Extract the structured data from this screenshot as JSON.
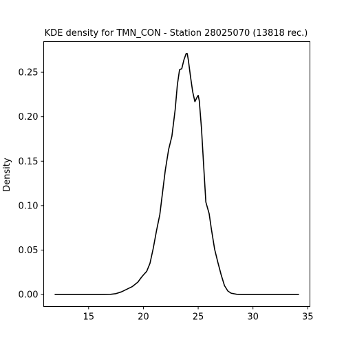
{
  "chart_data": {
    "type": "line",
    "title": "KDE density for TMN_CON - Station 28025070 (13818 rec.)",
    "xlabel": "",
    "ylabel": "Density",
    "xlim": [
      10.9,
      35.2
    ],
    "ylim": [
      -0.0135,
      0.2845
    ],
    "x_ticks": [
      15,
      20,
      25,
      30,
      35
    ],
    "y_ticks": [
      0.0,
      0.05,
      0.1,
      0.15,
      0.2,
      0.25
    ],
    "x_tick_labels": [
      "15",
      "20",
      "25",
      "30",
      "35"
    ],
    "y_tick_labels": [
      "0.00",
      "0.05",
      "0.10",
      "0.15",
      "0.20",
      "0.25"
    ],
    "grid": false,
    "series": [
      {
        "color": "#000000",
        "x": [
          11.9,
          14.0,
          16.0,
          17.0,
          17.5,
          18.0,
          18.5,
          19.0,
          19.5,
          19.8,
          20.0,
          20.3,
          20.6,
          20.9,
          21.2,
          21.5,
          21.8,
          22.0,
          22.3,
          22.6,
          22.9,
          23.1,
          23.3,
          23.5,
          23.7,
          23.9,
          24.0,
          24.1,
          24.3,
          24.5,
          24.7,
          24.9,
          25.0,
          25.1,
          25.3,
          25.5,
          25.7,
          26.0,
          26.2,
          26.5,
          26.8,
          27.1,
          27.4,
          27.7,
          28.0,
          28.5,
          29.0,
          30.0,
          32.0,
          34.2
        ],
        "y": [
          0.0,
          0.0,
          0.0,
          0.0002,
          0.001,
          0.003,
          0.006,
          0.009,
          0.014,
          0.019,
          0.022,
          0.026,
          0.035,
          0.052,
          0.072,
          0.09,
          0.12,
          0.14,
          0.163,
          0.178,
          0.208,
          0.236,
          0.253,
          0.254,
          0.264,
          0.271,
          0.271,
          0.264,
          0.245,
          0.228,
          0.217,
          0.222,
          0.224,
          0.218,
          0.187,
          0.145,
          0.104,
          0.091,
          0.074,
          0.051,
          0.036,
          0.022,
          0.01,
          0.004,
          0.0015,
          0.0003,
          0.0,
          0.0,
          0.0,
          0.0
        ]
      }
    ]
  }
}
